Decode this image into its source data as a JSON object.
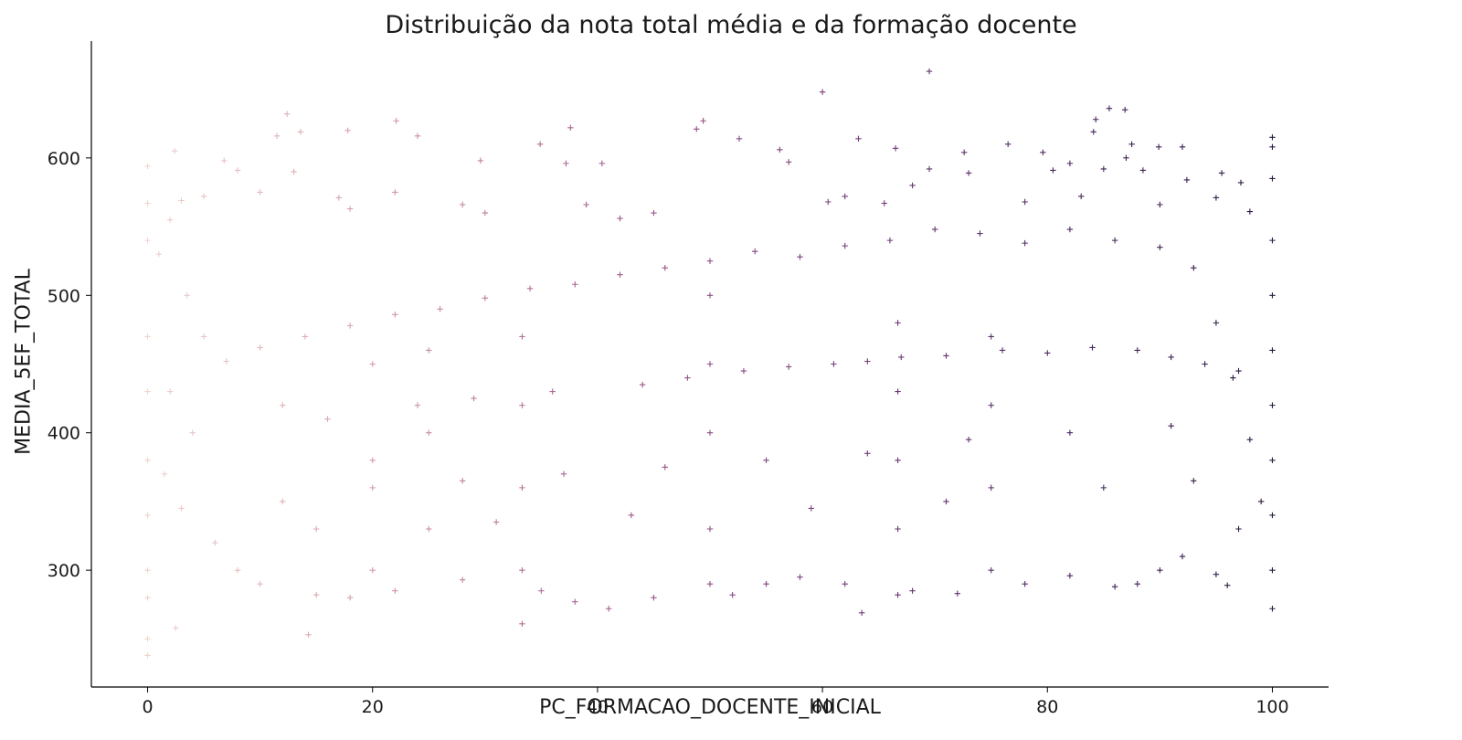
{
  "chart_data": {
    "type": "scatter",
    "title": "Distribuição da nota total média e da formação docente",
    "xlabel": "PC_FORMACAO_DOCENTE_INICIAL",
    "ylabel": "MEDIA_5EF_TOTAL",
    "xlim": [
      -5,
      105
    ],
    "ylim": [
      215,
      685
    ],
    "xticks": [
      0,
      20,
      40,
      60,
      80,
      100
    ],
    "yticks": [
      300,
      400,
      500,
      600
    ],
    "xtick_labels": [
      "0",
      "20",
      "40",
      "60",
      "80",
      "100"
    ],
    "ytick_labels": [
      "300",
      "400",
      "500",
      "600"
    ],
    "marker": "+",
    "grid": false,
    "hue": "PC_FORMACAO_DOCENTE_INICIAL",
    "colormap": [
      "#efd3cf",
      "#d59ca6",
      "#a35f8f",
      "#7a3f7a",
      "#4f2b64",
      "#2b1a3f"
    ],
    "points": [
      [
        69.5,
        663
      ],
      [
        60.0,
        648
      ],
      [
        85.5,
        636
      ],
      [
        86.9,
        635
      ],
      [
        84.3,
        628
      ],
      [
        84.1,
        619
      ],
      [
        12.4,
        632
      ],
      [
        22.1,
        627
      ],
      [
        49.4,
        627
      ],
      [
        37.6,
        622
      ],
      [
        13.6,
        619
      ],
      [
        17.8,
        620
      ],
      [
        48.8,
        621
      ],
      [
        24.0,
        616
      ],
      [
        11.5,
        616
      ],
      [
        87.5,
        610
      ],
      [
        89.9,
        608
      ],
      [
        92.0,
        608
      ],
      [
        100.0,
        615
      ],
      [
        100.0,
        608
      ],
      [
        2.4,
        605
      ],
      [
        6.8,
        598
      ],
      [
        56.2,
        606
      ],
      [
        66.5,
        607
      ],
      [
        72.6,
        604
      ],
      [
        76.5,
        610
      ],
      [
        79.6,
        604
      ],
      [
        63.2,
        614
      ],
      [
        29.6,
        598
      ],
      [
        40.4,
        596
      ],
      [
        37.2,
        596
      ],
      [
        57.0,
        597
      ],
      [
        34.9,
        610
      ],
      [
        52.6,
        614
      ],
      [
        0.0,
        594
      ],
      [
        0.0,
        567
      ],
      [
        0.0,
        540
      ],
      [
        0.0,
        470
      ],
      [
        0.0,
        430
      ],
      [
        0.0,
        380
      ],
      [
        0.0,
        340
      ],
      [
        0.0,
        300
      ],
      [
        0.0,
        280
      ],
      [
        0.0,
        250
      ],
      [
        0.0,
        238
      ],
      [
        2.5,
        258
      ],
      [
        14.3,
        253
      ],
      [
        33.3,
        261
      ],
      [
        63.5,
        269
      ],
      [
        50.0,
        290
      ],
      [
        50.0,
        330
      ],
      [
        50.0,
        400
      ],
      [
        50.0,
        450
      ],
      [
        50.0,
        500
      ],
      [
        33.3,
        300
      ],
      [
        33.3,
        360
      ],
      [
        33.3,
        420
      ],
      [
        33.3,
        470
      ],
      [
        66.7,
        282
      ],
      [
        66.7,
        330
      ],
      [
        66.7,
        380
      ],
      [
        66.7,
        430
      ],
      [
        66.7,
        480
      ],
      [
        75.0,
        300
      ],
      [
        75.0,
        360
      ],
      [
        75.0,
        420
      ],
      [
        75.0,
        470
      ],
      [
        25.0,
        330
      ],
      [
        25.0,
        400
      ],
      [
        25.0,
        460
      ],
      [
        20.0,
        300
      ],
      [
        20.0,
        380
      ],
      [
        20.0,
        450
      ],
      [
        100.0,
        272
      ],
      [
        100.0,
        300
      ],
      [
        100.0,
        340
      ],
      [
        100.0,
        380
      ],
      [
        100.0,
        420
      ],
      [
        100.0,
        460
      ],
      [
        100.0,
        500
      ],
      [
        100.0,
        540
      ],
      [
        100.0,
        585
      ],
      [
        92.4,
        584
      ],
      [
        95.5,
        589
      ],
      [
        97.2,
        582
      ],
      [
        80.5,
        591
      ],
      [
        82.0,
        596
      ],
      [
        85.0,
        592
      ],
      [
        87.0,
        600
      ],
      [
        88.5,
        591
      ],
      [
        69.5,
        592
      ],
      [
        68.0,
        580
      ],
      [
        73.0,
        589
      ],
      [
        60.5,
        568
      ],
      [
        62.0,
        572
      ],
      [
        65.5,
        567
      ],
      [
        78.0,
        568
      ],
      [
        83.0,
        572
      ],
      [
        90.0,
        566
      ],
      [
        95.0,
        571
      ],
      [
        98.0,
        561
      ],
      [
        45.0,
        560
      ],
      [
        42.0,
        556
      ],
      [
        39.0,
        566
      ],
      [
        30.0,
        560
      ],
      [
        28.0,
        566
      ],
      [
        17.0,
        571
      ],
      [
        18.0,
        563
      ],
      [
        22.0,
        575
      ],
      [
        10.0,
        575
      ],
      [
        13.0,
        590
      ],
      [
        8.0,
        591
      ],
      [
        5.0,
        572
      ],
      [
        3.0,
        569
      ],
      [
        2.0,
        555
      ],
      [
        1.0,
        530
      ],
      [
        3.5,
        500
      ],
      [
        5.0,
        470
      ],
      [
        2.0,
        430
      ],
      [
        4.0,
        400
      ],
      [
        1.5,
        370
      ],
      [
        3.0,
        345
      ],
      [
        6.0,
        320
      ],
      [
        8.0,
        300
      ],
      [
        10.0,
        290
      ],
      [
        15.0,
        282
      ],
      [
        18.0,
        280
      ],
      [
        22.0,
        285
      ],
      [
        28.0,
        293
      ],
      [
        35.0,
        285
      ],
      [
        38.0,
        277
      ],
      [
        41.0,
        272
      ],
      [
        45.0,
        280
      ],
      [
        52.0,
        282
      ],
      [
        55.0,
        290
      ],
      [
        58.0,
        295
      ],
      [
        62.0,
        290
      ],
      [
        68.0,
        285
      ],
      [
        72.0,
        283
      ],
      [
        78.0,
        290
      ],
      [
        82.0,
        296
      ],
      [
        86.0,
        288
      ],
      [
        88.0,
        290
      ],
      [
        90.0,
        300
      ],
      [
        92.0,
        310
      ],
      [
        95.0,
        297
      ],
      [
        96.0,
        289
      ],
      [
        97.0,
        330
      ],
      [
        99.0,
        350
      ],
      [
        98.0,
        395
      ],
      [
        96.5,
        440
      ],
      [
        95.0,
        480
      ],
      [
        93.0,
        520
      ],
      [
        90.0,
        535
      ],
      [
        86.0,
        540
      ],
      [
        82.0,
        548
      ],
      [
        78.0,
        538
      ],
      [
        74.0,
        545
      ],
      [
        70.0,
        548
      ],
      [
        66.0,
        540
      ],
      [
        62.0,
        536
      ],
      [
        58.0,
        528
      ],
      [
        54.0,
        532
      ],
      [
        50.0,
        525
      ],
      [
        46.0,
        520
      ],
      [
        42.0,
        515
      ],
      [
        38.0,
        508
      ],
      [
        34.0,
        505
      ],
      [
        30.0,
        498
      ],
      [
        26.0,
        490
      ],
      [
        22.0,
        486
      ],
      [
        18.0,
        478
      ],
      [
        14.0,
        470
      ],
      [
        10.0,
        462
      ],
      [
        7.0,
        452
      ],
      [
        12.0,
        420
      ],
      [
        16.0,
        410
      ],
      [
        24.0,
        420
      ],
      [
        29.0,
        425
      ],
      [
        36.0,
        430
      ],
      [
        44.0,
        435
      ],
      [
        48.0,
        440
      ],
      [
        53.0,
        445
      ],
      [
        57.0,
        448
      ],
      [
        61.0,
        450
      ],
      [
        64.0,
        452
      ],
      [
        67.0,
        455
      ],
      [
        71.0,
        456
      ],
      [
        76.0,
        460
      ],
      [
        80.0,
        458
      ],
      [
        84.0,
        462
      ],
      [
        88.0,
        460
      ],
      [
        91.0,
        455
      ],
      [
        94.0,
        450
      ],
      [
        97.0,
        445
      ],
      [
        12.0,
        350
      ],
      [
        20.0,
        360
      ],
      [
        28.0,
        365
      ],
      [
        37.0,
        370
      ],
      [
        46.0,
        375
      ],
      [
        55.0,
        380
      ],
      [
        64.0,
        385
      ],
      [
        73.0,
        395
      ],
      [
        82.0,
        400
      ],
      [
        91.0,
        405
      ],
      [
        15.0,
        330
      ],
      [
        31.0,
        335
      ],
      [
        43.0,
        340
      ],
      [
        59.0,
        345
      ],
      [
        71.0,
        350
      ],
      [
        85.0,
        360
      ],
      [
        93.0,
        365
      ]
    ]
  }
}
